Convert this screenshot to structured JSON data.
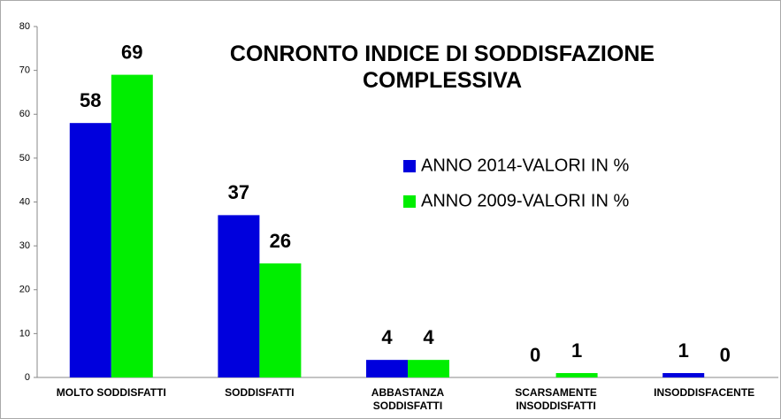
{
  "chart_data": {
    "type": "bar",
    "title": "CONRONTO INDICE DI SODDISFAZIONE COMPLESSIVA",
    "categories": [
      "MOLTO SODDISFATTI",
      "SODDISFATTI",
      "ABBASTANZA SODDISFATTI",
      "SCARSAMENTE INSODDISFATTI",
      "INSODDISFACENTE"
    ],
    "series": [
      {
        "name": "ANNO 2014-VALORI IN %",
        "color": "#0000dd",
        "values": [
          58,
          37,
          4,
          0,
          1
        ]
      },
      {
        "name": "ANNO 2009-VALORI IN %",
        "color": "#00ee00",
        "values": [
          69,
          26,
          4,
          1,
          0
        ]
      }
    ],
    "ylim": [
      0,
      80
    ],
    "yticks": [
      0,
      10,
      20,
      30,
      40,
      50,
      60,
      70,
      80
    ],
    "grid": false,
    "legend": "right"
  }
}
